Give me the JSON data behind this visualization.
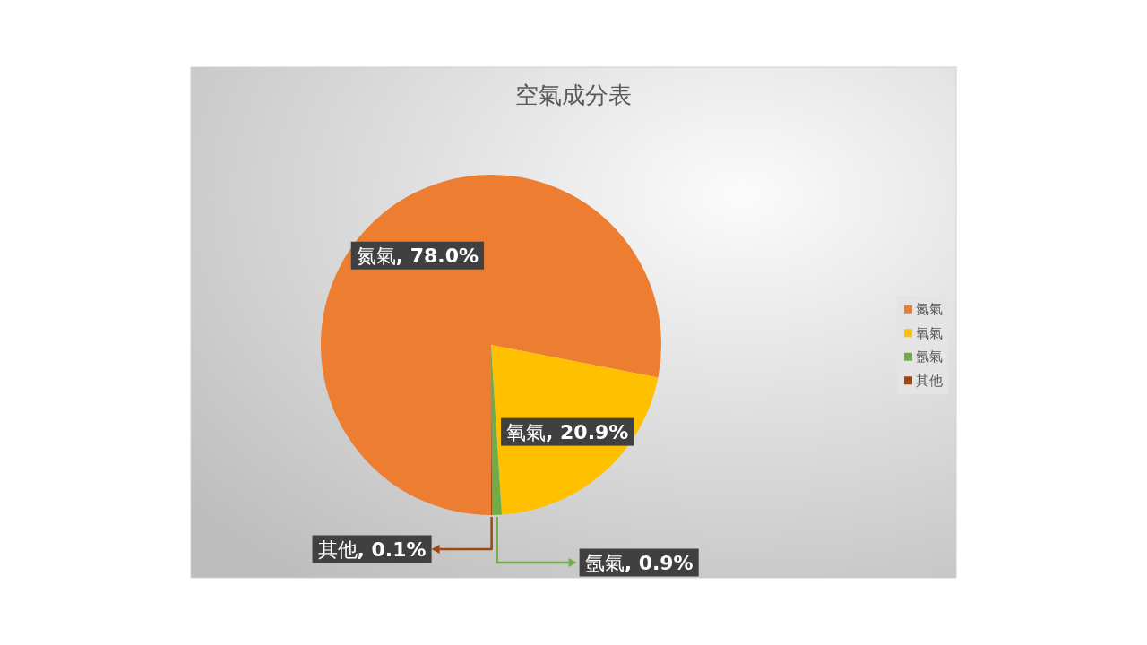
{
  "chart_data": {
    "type": "pie",
    "title": "空氣成分表",
    "categories": [
      "氮氣",
      "氧氣",
      "氬氣",
      "其他"
    ],
    "values": [
      78.0,
      20.9,
      0.9,
      0.1
    ],
    "colors": [
      "#ed7d31",
      "#ffc000",
      "#70ad47",
      "#9e480e"
    ],
    "value_labels": [
      "氮氣, 78.0%",
      "氧氣, 20.9%",
      "氬氣, 0.9%",
      "其他, 0.1%"
    ],
    "legend": "right"
  }
}
